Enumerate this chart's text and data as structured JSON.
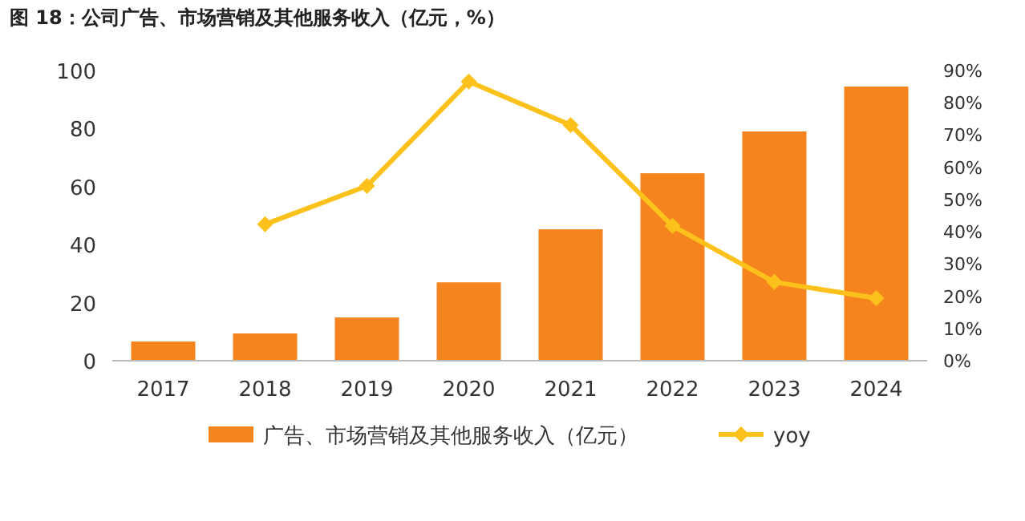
{
  "chart_data": {
    "type": "bar",
    "title": "图 18：公司广告、市场营销及其他服务收入（亿元，%）",
    "categories": [
      "2017",
      "2018",
      "2019",
      "2020",
      "2021",
      "2022",
      "2023",
      "2024"
    ],
    "series": [
      {
        "name": "广告、市场营销及其他服务收入（亿元）",
        "color": "#f5841f",
        "values": [
          6.6,
          9.4,
          14.9,
          27,
          45.3,
          64.6,
          79,
          94.5
        ]
      },
      {
        "name": "yoy",
        "type": "line",
        "axis": "y2",
        "color": "#fcc21b",
        "marker": "diamond",
        "values": [
          null,
          42.3,
          54.2,
          86.6,
          73.1,
          41.8,
          24.4,
          19.4
        ]
      }
    ],
    "ylim": [
      0,
      100
    ],
    "yticks": [
      0,
      20,
      40,
      60,
      80,
      100
    ],
    "y2lim": [
      0,
      90
    ],
    "y2ticks": [
      {
        "value": 0,
        "label": "0%"
      },
      {
        "value": 10,
        "label": "10%"
      },
      {
        "value": 20,
        "label": "20%"
      },
      {
        "value": 30,
        "label": "30%"
      },
      {
        "value": 40,
        "label": "40%"
      },
      {
        "value": 50,
        "label": "50%"
      },
      {
        "value": 60,
        "label": "60%"
      },
      {
        "value": 70,
        "label": "70%"
      },
      {
        "value": 80,
        "label": "80%"
      },
      {
        "value": 90,
        "label": "90%"
      }
    ],
    "grid": false,
    "legend": "bottom"
  }
}
